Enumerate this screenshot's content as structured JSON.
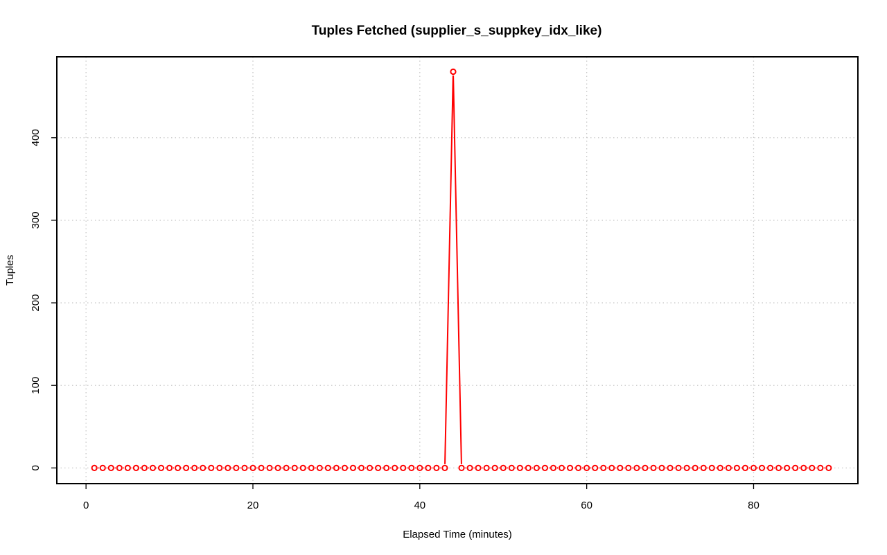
{
  "chart_data": {
    "type": "line",
    "title": "Tuples Fetched (supplier_s_suppkey_idx_like)",
    "xlabel": "Elapsed Time (minutes)",
    "ylabel": "Tuples",
    "xlim": [
      -3.5,
      92.5
    ],
    "ylim": [
      -19,
      498
    ],
    "x_ticks": [
      0,
      20,
      40,
      60,
      80
    ],
    "y_ticks": [
      0,
      100,
      200,
      300,
      400
    ],
    "grid": true,
    "series": [
      {
        "color": "#ff0000",
        "marker": "open-circle",
        "x": [
          1,
          2,
          3,
          4,
          5,
          6,
          7,
          8,
          9,
          10,
          11,
          12,
          13,
          14,
          15,
          16,
          17,
          18,
          19,
          20,
          21,
          22,
          23,
          24,
          25,
          26,
          27,
          28,
          29,
          30,
          31,
          32,
          33,
          34,
          35,
          36,
          37,
          38,
          39,
          40,
          41,
          42,
          43,
          44,
          45,
          46,
          47,
          48,
          49,
          50,
          51,
          52,
          53,
          54,
          55,
          56,
          57,
          58,
          59,
          60,
          61,
          62,
          63,
          64,
          65,
          66,
          67,
          68,
          69,
          70,
          71,
          72,
          73,
          74,
          75,
          76,
          77,
          78,
          79,
          80,
          81,
          82,
          83,
          84,
          85,
          86,
          87,
          88,
          89
        ],
        "values": [
          0,
          0,
          0,
          0,
          0,
          0,
          0,
          0,
          0,
          0,
          0,
          0,
          0,
          0,
          0,
          0,
          0,
          0,
          0,
          0,
          0,
          0,
          0,
          0,
          0,
          0,
          0,
          0,
          0,
          0,
          0,
          0,
          0,
          0,
          0,
          0,
          0,
          0,
          0,
          0,
          0,
          0,
          0,
          480,
          0,
          0,
          0,
          0,
          0,
          0,
          0,
          0,
          0,
          0,
          0,
          0,
          0,
          0,
          0,
          0,
          0,
          0,
          0,
          0,
          0,
          0,
          0,
          0,
          0,
          0,
          0,
          0,
          0,
          0,
          0,
          0,
          0,
          0,
          0,
          0,
          0,
          0,
          0,
          0,
          0,
          0,
          0,
          0,
          0
        ]
      }
    ]
  }
}
